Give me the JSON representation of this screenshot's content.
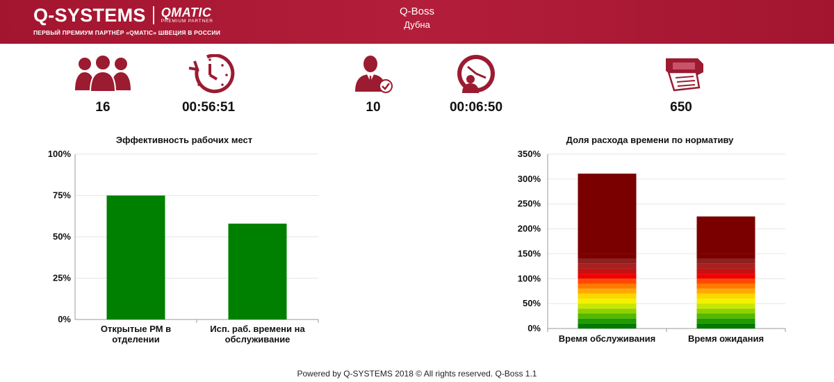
{
  "header": {
    "brand_main": "Q-SYSTEMS",
    "brand_qmatic": "QMATIC",
    "brand_qmatic_sub": "PREMIUM PARTNER",
    "brand_tagline": "ПЕРВЫЙ ПРЕМИУМ ПАРТНЁР «QMATIC» ШВЕЦИЯ В РОССИИ",
    "app_title": "Q-Boss",
    "location": "Дубна"
  },
  "kpis": [
    {
      "icon": "people-group-icon",
      "value": "16"
    },
    {
      "icon": "timer-clock-icon",
      "value": "00:56:51"
    },
    {
      "icon": "operator-check-icon",
      "value": "10"
    },
    {
      "icon": "operator-clock-icon",
      "value": "00:06:50"
    },
    {
      "icon": "ticket-printer-icon",
      "value": "650"
    }
  ],
  "chart_data": [
    {
      "type": "bar",
      "title": "Эффективность рабочих мест",
      "categories": [
        "Открытые РМ в отделении",
        "Исп. раб. времени на обслуживание"
      ],
      "category_lines": [
        [
          "Открытые РМ в",
          "отделении"
        ],
        [
          "Исп. раб. времени на",
          "обслуживание"
        ]
      ],
      "values": [
        75,
        58
      ],
      "ylim": [
        0,
        100
      ],
      "yticks": [
        "0%",
        "25%",
        "50%",
        "75%",
        "100%"
      ],
      "ytick_values": [
        0,
        25,
        50,
        75,
        100
      ],
      "bar_color": "#008000",
      "grid": true
    },
    {
      "type": "bar",
      "title": "Доля расхода времени по нормативу",
      "categories": [
        "Время обслуживания",
        "Время ожидания"
      ],
      "values": [
        311,
        225
      ],
      "ylim": [
        0,
        350
      ],
      "yticks": [
        "0%",
        "50%",
        "100%",
        "150%",
        "200%",
        "250%",
        "300%",
        "350%"
      ],
      "ytick_values": [
        0,
        50,
        100,
        150,
        200,
        250,
        300,
        350
      ],
      "segment_step": 10,
      "segment_colors": [
        "#007a00",
        "#1f9a00",
        "#52b800",
        "#8fd000",
        "#c8e600",
        "#f2f200",
        "#ffd600",
        "#ffaa00",
        "#ff7a00",
        "#ff4a00",
        "#f00000",
        "#c81010",
        "#a82020",
        "#8e2020",
        "#7a0000"
      ],
      "overflow_color": "#7a0000",
      "grid": true
    }
  ],
  "footer": "Powered by Q-SYSTEMS 2018 © All rights reserved. Q-Boss 1.1"
}
